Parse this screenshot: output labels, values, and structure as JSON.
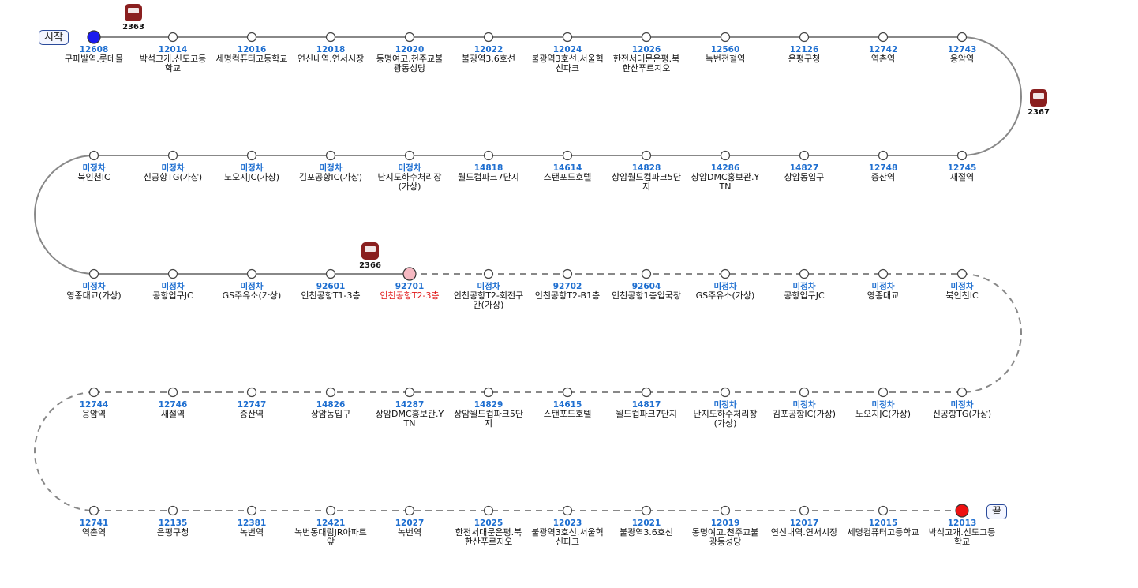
{
  "start_label": "시작",
  "end_label": "끝",
  "buses": [
    {
      "number": "2363"
    },
    {
      "number": "2367"
    },
    {
      "number": "2366"
    }
  ],
  "rows": [
    {
      "line": "solid",
      "stops": [
        {
          "code": "12608",
          "name": "구파발역.롯데몰",
          "color": "#1a1aee"
        },
        {
          "code": "12014",
          "name": "박석고개.신도고등학교"
        },
        {
          "code": "12016",
          "name": "세명컴퓨터고등학교"
        },
        {
          "code": "12018",
          "name": "연신내역.연서시장"
        },
        {
          "code": "12020",
          "name": "동명여고.천주교불광동성당"
        },
        {
          "code": "12022",
          "name": "불광역3.6호선"
        },
        {
          "code": "12024",
          "name": "불광역3호선.서울혁신파크"
        },
        {
          "code": "12026",
          "name": "한전서대문은평.북한산푸르지오"
        },
        {
          "code": "12560",
          "name": "녹번전철역"
        },
        {
          "code": "12126",
          "name": "은평구청"
        },
        {
          "code": "12742",
          "name": "역촌역"
        },
        {
          "code": "12743",
          "name": "응암역"
        }
      ]
    },
    {
      "line": "solid",
      "stops": [
        {
          "code": "미정차",
          "name": "북인천IC"
        },
        {
          "code": "미정차",
          "name": "신공항TG(가상)"
        },
        {
          "code": "미정차",
          "name": "노오지JC(가상)"
        },
        {
          "code": "미정차",
          "name": "김포공항IC(가상)"
        },
        {
          "code": "미정차",
          "name": "난지도하수처리장(가상)"
        },
        {
          "code": "14818",
          "name": "월드컵파크7단지"
        },
        {
          "code": "14614",
          "name": "스탠포드호텔"
        },
        {
          "code": "14828",
          "name": "상암월드컵파크5단지"
        },
        {
          "code": "14286",
          "name": "상암DMC홍보관.YTN"
        },
        {
          "code": "14827",
          "name": "상암동입구"
        },
        {
          "code": "12748",
          "name": "증산역"
        },
        {
          "code": "12745",
          "name": "새절역"
        }
      ]
    },
    {
      "line": "solid",
      "dashed_from": 4,
      "stops": [
        {
          "code": "미정차",
          "name": "영종대교(가상)"
        },
        {
          "code": "미정차",
          "name": "공항입구JC"
        },
        {
          "code": "미정차",
          "name": "GS주유소(가상)"
        },
        {
          "code": "92601",
          "name": "인천공항T1-3층"
        },
        {
          "code": "92701",
          "name": "인천공항T2-3층",
          "color": "#f6b9c2",
          "text_color": "#e01818"
        },
        {
          "code": "미정차",
          "name": "인천공항T2-회전구간(가상)"
        },
        {
          "code": "92702",
          "name": "인천공항T2-B1층"
        },
        {
          "code": "92604",
          "name": "인천공항1층입국장"
        },
        {
          "code": "미정차",
          "name": "GS주유소(가상)"
        },
        {
          "code": "미정차",
          "name": "공항입구JC"
        },
        {
          "code": "미정차",
          "name": "영종대교"
        },
        {
          "code": "미정차",
          "name": "북인천IC"
        }
      ]
    },
    {
      "line": "dashed",
      "stops": [
        {
          "code": "12744",
          "name": "응암역"
        },
        {
          "code": "12746",
          "name": "새절역"
        },
        {
          "code": "12747",
          "name": "증산역"
        },
        {
          "code": "14826",
          "name": "상암동입구"
        },
        {
          "code": "14287",
          "name": "상암DMC홍보관.YTN"
        },
        {
          "code": "14829",
          "name": "상암월드컵파크5단지"
        },
        {
          "code": "14615",
          "name": "스탠포드호텔"
        },
        {
          "code": "14817",
          "name": "월드컵파크7단지"
        },
        {
          "code": "미정차",
          "name": "난지도하수처리장(가상)"
        },
        {
          "code": "미정차",
          "name": "김포공항IC(가상)"
        },
        {
          "code": "미정차",
          "name": "노오지JC(가상)"
        },
        {
          "code": "미정차",
          "name": "신공항TG(가상)"
        }
      ]
    },
    {
      "line": "dashed",
      "stops": [
        {
          "code": "12741",
          "name": "역촌역"
        },
        {
          "code": "12135",
          "name": "은평구청"
        },
        {
          "code": "12381",
          "name": "녹번역"
        },
        {
          "code": "12421",
          "name": "녹번동대림JR아파트앞"
        },
        {
          "code": "12027",
          "name": "녹번역"
        },
        {
          "code": "12025",
          "name": "한전서대문은평.북한산푸르지오"
        },
        {
          "code": "12023",
          "name": "불광역3호선.서울혁신파크"
        },
        {
          "code": "12021",
          "name": "불광역3.6호선"
        },
        {
          "code": "12019",
          "name": "동명여고.천주교불광동성당"
        },
        {
          "code": "12017",
          "name": "연신내역.연서시장"
        },
        {
          "code": "12015",
          "name": "세명컴퓨터고등학교"
        },
        {
          "code": "12013",
          "name": "박석고개.신도고등학교",
          "color": "#ee1111"
        }
      ]
    }
  ]
}
